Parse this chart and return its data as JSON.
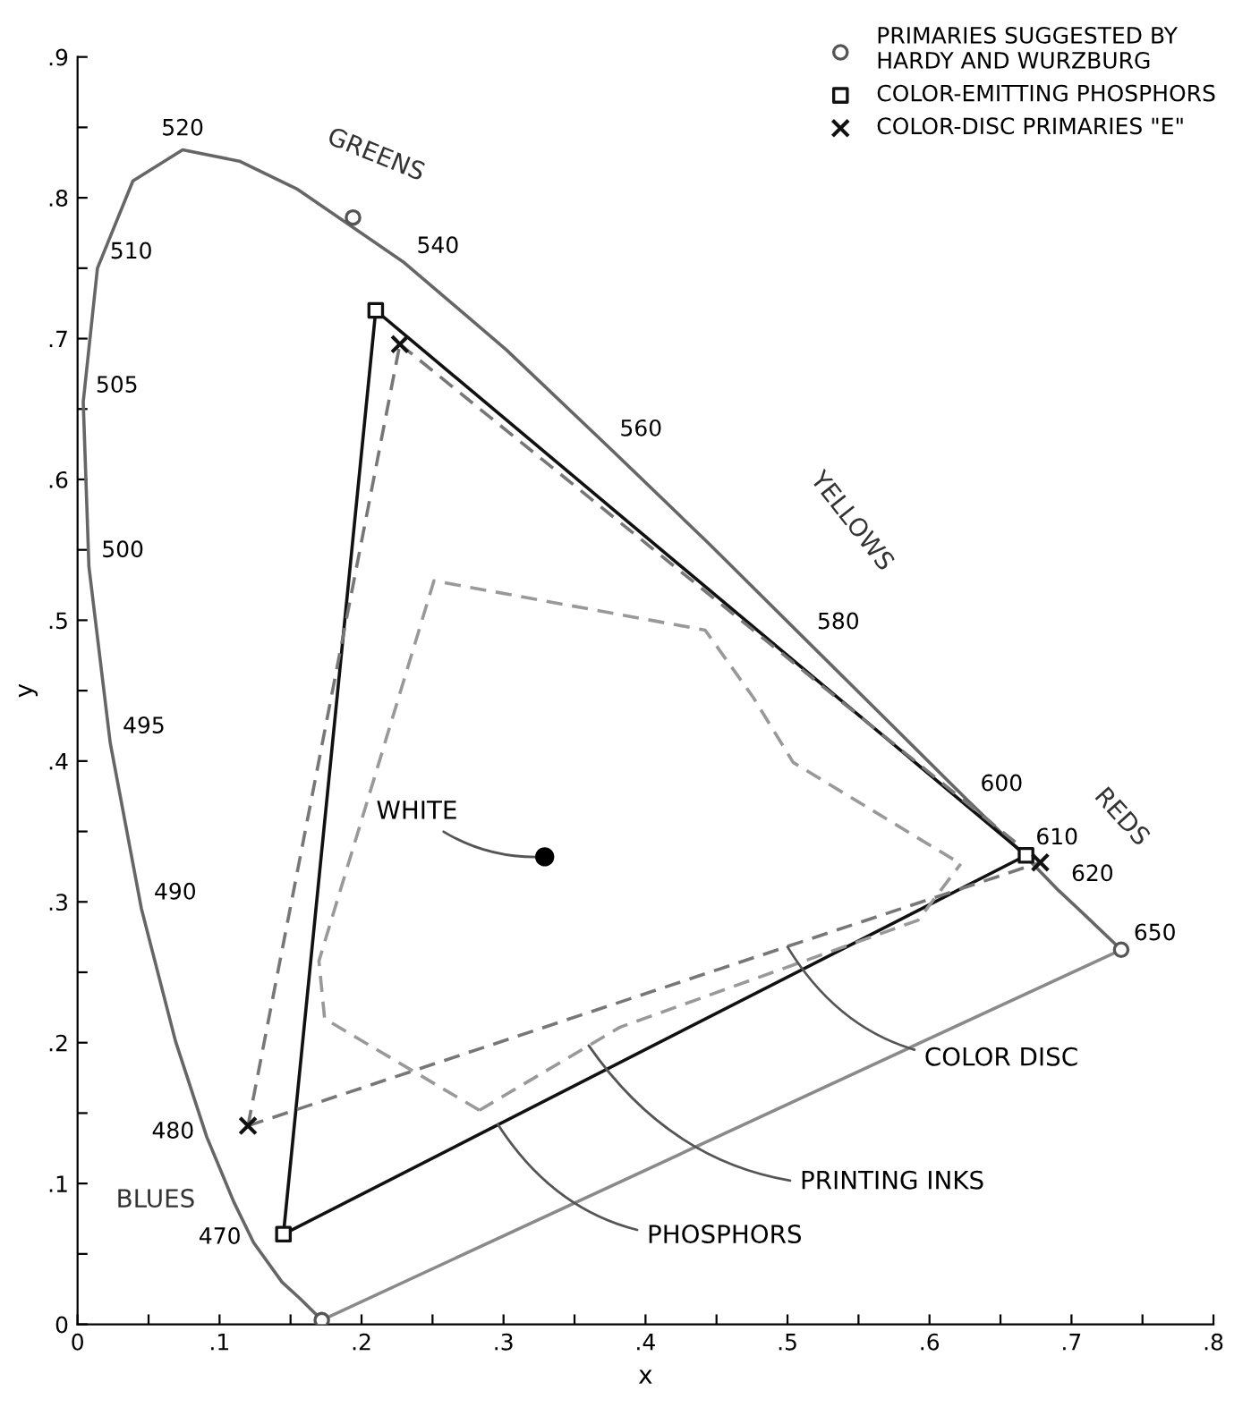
{
  "chart_data": {
    "type": "line",
    "xlabel": "x",
    "ylabel": "y",
    "xlim": [
      0,
      0.8
    ],
    "ylim": [
      0,
      0.9
    ],
    "xticks": [
      {
        "value": 0,
        "label": "0"
      },
      {
        "value": 0.05,
        "label": null
      },
      {
        "value": 0.1,
        "label": ".1"
      },
      {
        "value": 0.15,
        "label": null
      },
      {
        "value": 0.2,
        "label": ".2"
      },
      {
        "value": 0.25,
        "label": null
      },
      {
        "value": 0.3,
        "label": ".3"
      },
      {
        "value": 0.35,
        "label": null
      },
      {
        "value": 0.4,
        "label": ".4"
      },
      {
        "value": 0.45,
        "label": null
      },
      {
        "value": 0.5,
        "label": ".5"
      },
      {
        "value": 0.55,
        "label": null
      },
      {
        "value": 0.6,
        "label": ".6"
      },
      {
        "value": 0.65,
        "label": null
      },
      {
        "value": 0.7,
        "label": ".7"
      },
      {
        "value": 0.75,
        "label": null
      },
      {
        "value": 0.8,
        "label": ".8"
      }
    ],
    "yticks": [
      {
        "value": 0,
        "label": "0"
      },
      {
        "value": 0.05,
        "label": null
      },
      {
        "value": 0.1,
        "label": ".1"
      },
      {
        "value": 0.15,
        "label": null
      },
      {
        "value": 0.2,
        "label": ".2"
      },
      {
        "value": 0.25,
        "label": null
      },
      {
        "value": 0.3,
        "label": ".3"
      },
      {
        "value": 0.35,
        "label": null
      },
      {
        "value": 0.4,
        "label": ".4"
      },
      {
        "value": 0.45,
        "label": null
      },
      {
        "value": 0.5,
        "label": ".5"
      },
      {
        "value": 0.55,
        "label": null
      },
      {
        "value": 0.6,
        "label": ".6"
      },
      {
        "value": 0.65,
        "label": null
      },
      {
        "value": 0.7,
        "label": ".7"
      },
      {
        "value": 0.75,
        "label": null
      },
      {
        "value": 0.8,
        "label": ".8"
      },
      {
        "value": 0.85,
        "label": null
      },
      {
        "value": 0.9,
        "label": ".9"
      }
    ],
    "grid": false,
    "legend": "top right",
    "series": [
      {
        "color": "#666666",
        "line_style": "solid",
        "x": [
          0.172,
          0.164,
          0.157,
          0.144,
          0.124,
          0.11,
          0.091,
          0.069,
          0.045,
          0.023,
          0.008,
          0.004,
          0.014,
          0.039,
          0.074,
          0.114,
          0.155,
          0.23,
          0.302,
          0.373,
          0.444,
          0.512,
          0.575,
          0.627,
          0.666,
          0.691,
          0.708,
          0.735
        ],
        "values": [
          0.003,
          0.011,
          0.018,
          0.03,
          0.058,
          0.087,
          0.133,
          0.201,
          0.295,
          0.413,
          0.538,
          0.655,
          0.75,
          0.812,
          0.834,
          0.826,
          0.806,
          0.754,
          0.692,
          0.624,
          0.555,
          0.487,
          0.424,
          0.372,
          0.334,
          0.308,
          0.292,
          0.266
        ]
      },
      {
        "color": "#8a8a8a",
        "line_style": "solid",
        "x": [
          0.172,
          0.735
        ],
        "values": [
          0.003,
          0.266
        ]
      },
      {
        "color": "#111111",
        "line_style": "solid",
        "x": [
          0.145,
          0.21
        ],
        "values": [
          0.064,
          0.72
        ]
      },
      {
        "color": "#111111",
        "line_style": "solid",
        "x": [
          0.21,
          0.668
        ],
        "values": [
          0.72,
          0.333
        ]
      },
      {
        "color": "#111111",
        "line_style": "solid",
        "x": [
          0.145,
          0.668
        ],
        "values": [
          0.064,
          0.333
        ]
      },
      {
        "color": "#777777",
        "line_style": "dashed",
        "x": [
          0.12,
          0.227
        ],
        "values": [
          0.141,
          0.696
        ]
      },
      {
        "color": "#777777",
        "line_style": "dashed",
        "x": [
          0.227,
          0.678
        ],
        "values": [
          0.696,
          0.328
        ]
      },
      {
        "color": "#777777",
        "line_style": "dashed",
        "x": [
          0.12,
          0.678
        ],
        "values": [
          0.141,
          0.328
        ]
      },
      {
        "color": "#999999",
        "line_style": "dashed",
        "x": [
          0.283,
          0.174,
          0.17,
          0.251,
          0.442,
          0.476,
          0.504,
          0.622
        ],
        "values": [
          0.152,
          0.217,
          0.258,
          0.528,
          0.493,
          0.445,
          0.399,
          0.327
        ]
      },
      {
        "color": "#999999",
        "line_style": "dashed",
        "x": [
          0.283,
          0.382,
          0.592,
          0.622
        ],
        "values": [
          0.152,
          0.211,
          0.287,
          0.327
        ]
      },
      {
        "type": "scatter",
        "name": "PRIMARIES SUGGESTED BY\nHARDY AND WURZBURG",
        "color": "#555555",
        "marker": "circle",
        "x": [
          0.194,
          0.735,
          0.172
        ],
        "values": [
          0.786,
          0.266,
          0.003
        ]
      },
      {
        "type": "scatter",
        "name": "COLOR-EMITTING PHOSPHORS",
        "color": "#111111",
        "marker": "square",
        "x": [
          0.145,
          0.21,
          0.668
        ],
        "values": [
          0.064,
          0.72,
          0.333
        ]
      },
      {
        "type": "scatter",
        "name": "COLOR-DISC PRIMARIES \"E\"",
        "color": "#111111",
        "marker": "cross",
        "x": [
          0.12,
          0.227,
          0.678
        ],
        "values": [
          0.141,
          0.696,
          0.328
        ]
      },
      {
        "type": "scatter",
        "color": "#000000",
        "marker": "circle",
        "x": [
          0.329
        ],
        "values": [
          0.332
        ]
      }
    ],
    "annotations": [
      "GREENS",
      "YELLOWS",
      "REDS",
      "BLUES",
      {
        "text": "470",
        "x": 0.124,
        "y": 0.058
      },
      {
        "text": "480",
        "x": 0.091,
        "y": 0.133
      },
      {
        "text": "490",
        "x": 0.045,
        "y": 0.295
      },
      {
        "text": "495",
        "x": 0.023,
        "y": 0.413
      },
      {
        "text": "500",
        "x": 0.008,
        "y": 0.538
      },
      {
        "text": "505",
        "x": 0.004,
        "y": 0.655
      },
      {
        "text": "510",
        "x": 0.014,
        "y": 0.75
      },
      {
        "text": "520",
        "x": 0.074,
        "y": 0.834
      },
      {
        "text": "540",
        "x": 0.23,
        "y": 0.754
      },
      {
        "text": "560",
        "x": 0.373,
        "y": 0.624
      },
      {
        "text": "580",
        "x": 0.512,
        "y": 0.487
      },
      {
        "text": "600",
        "x": 0.627,
        "y": 0.372
      },
      {
        "text": "610",
        "x": 0.666,
        "y": 0.334
      },
      {
        "text": "620",
        "x": 0.691,
        "y": 0.308
      },
      {
        "text": "650",
        "x": 0.735,
        "y": 0.266
      },
      {
        "text": "WHITE",
        "x": 0.329,
        "y": 0.332
      },
      {
        "text": "COLOR DISC",
        "x": 0.5,
        "y": 0.268
      },
      {
        "text": "PRINTING INKS",
        "x": 0.36,
        "y": 0.198
      },
      {
        "text": "PHOSPHORS",
        "x": 0.296,
        "y": 0.142
      }
    ]
  }
}
